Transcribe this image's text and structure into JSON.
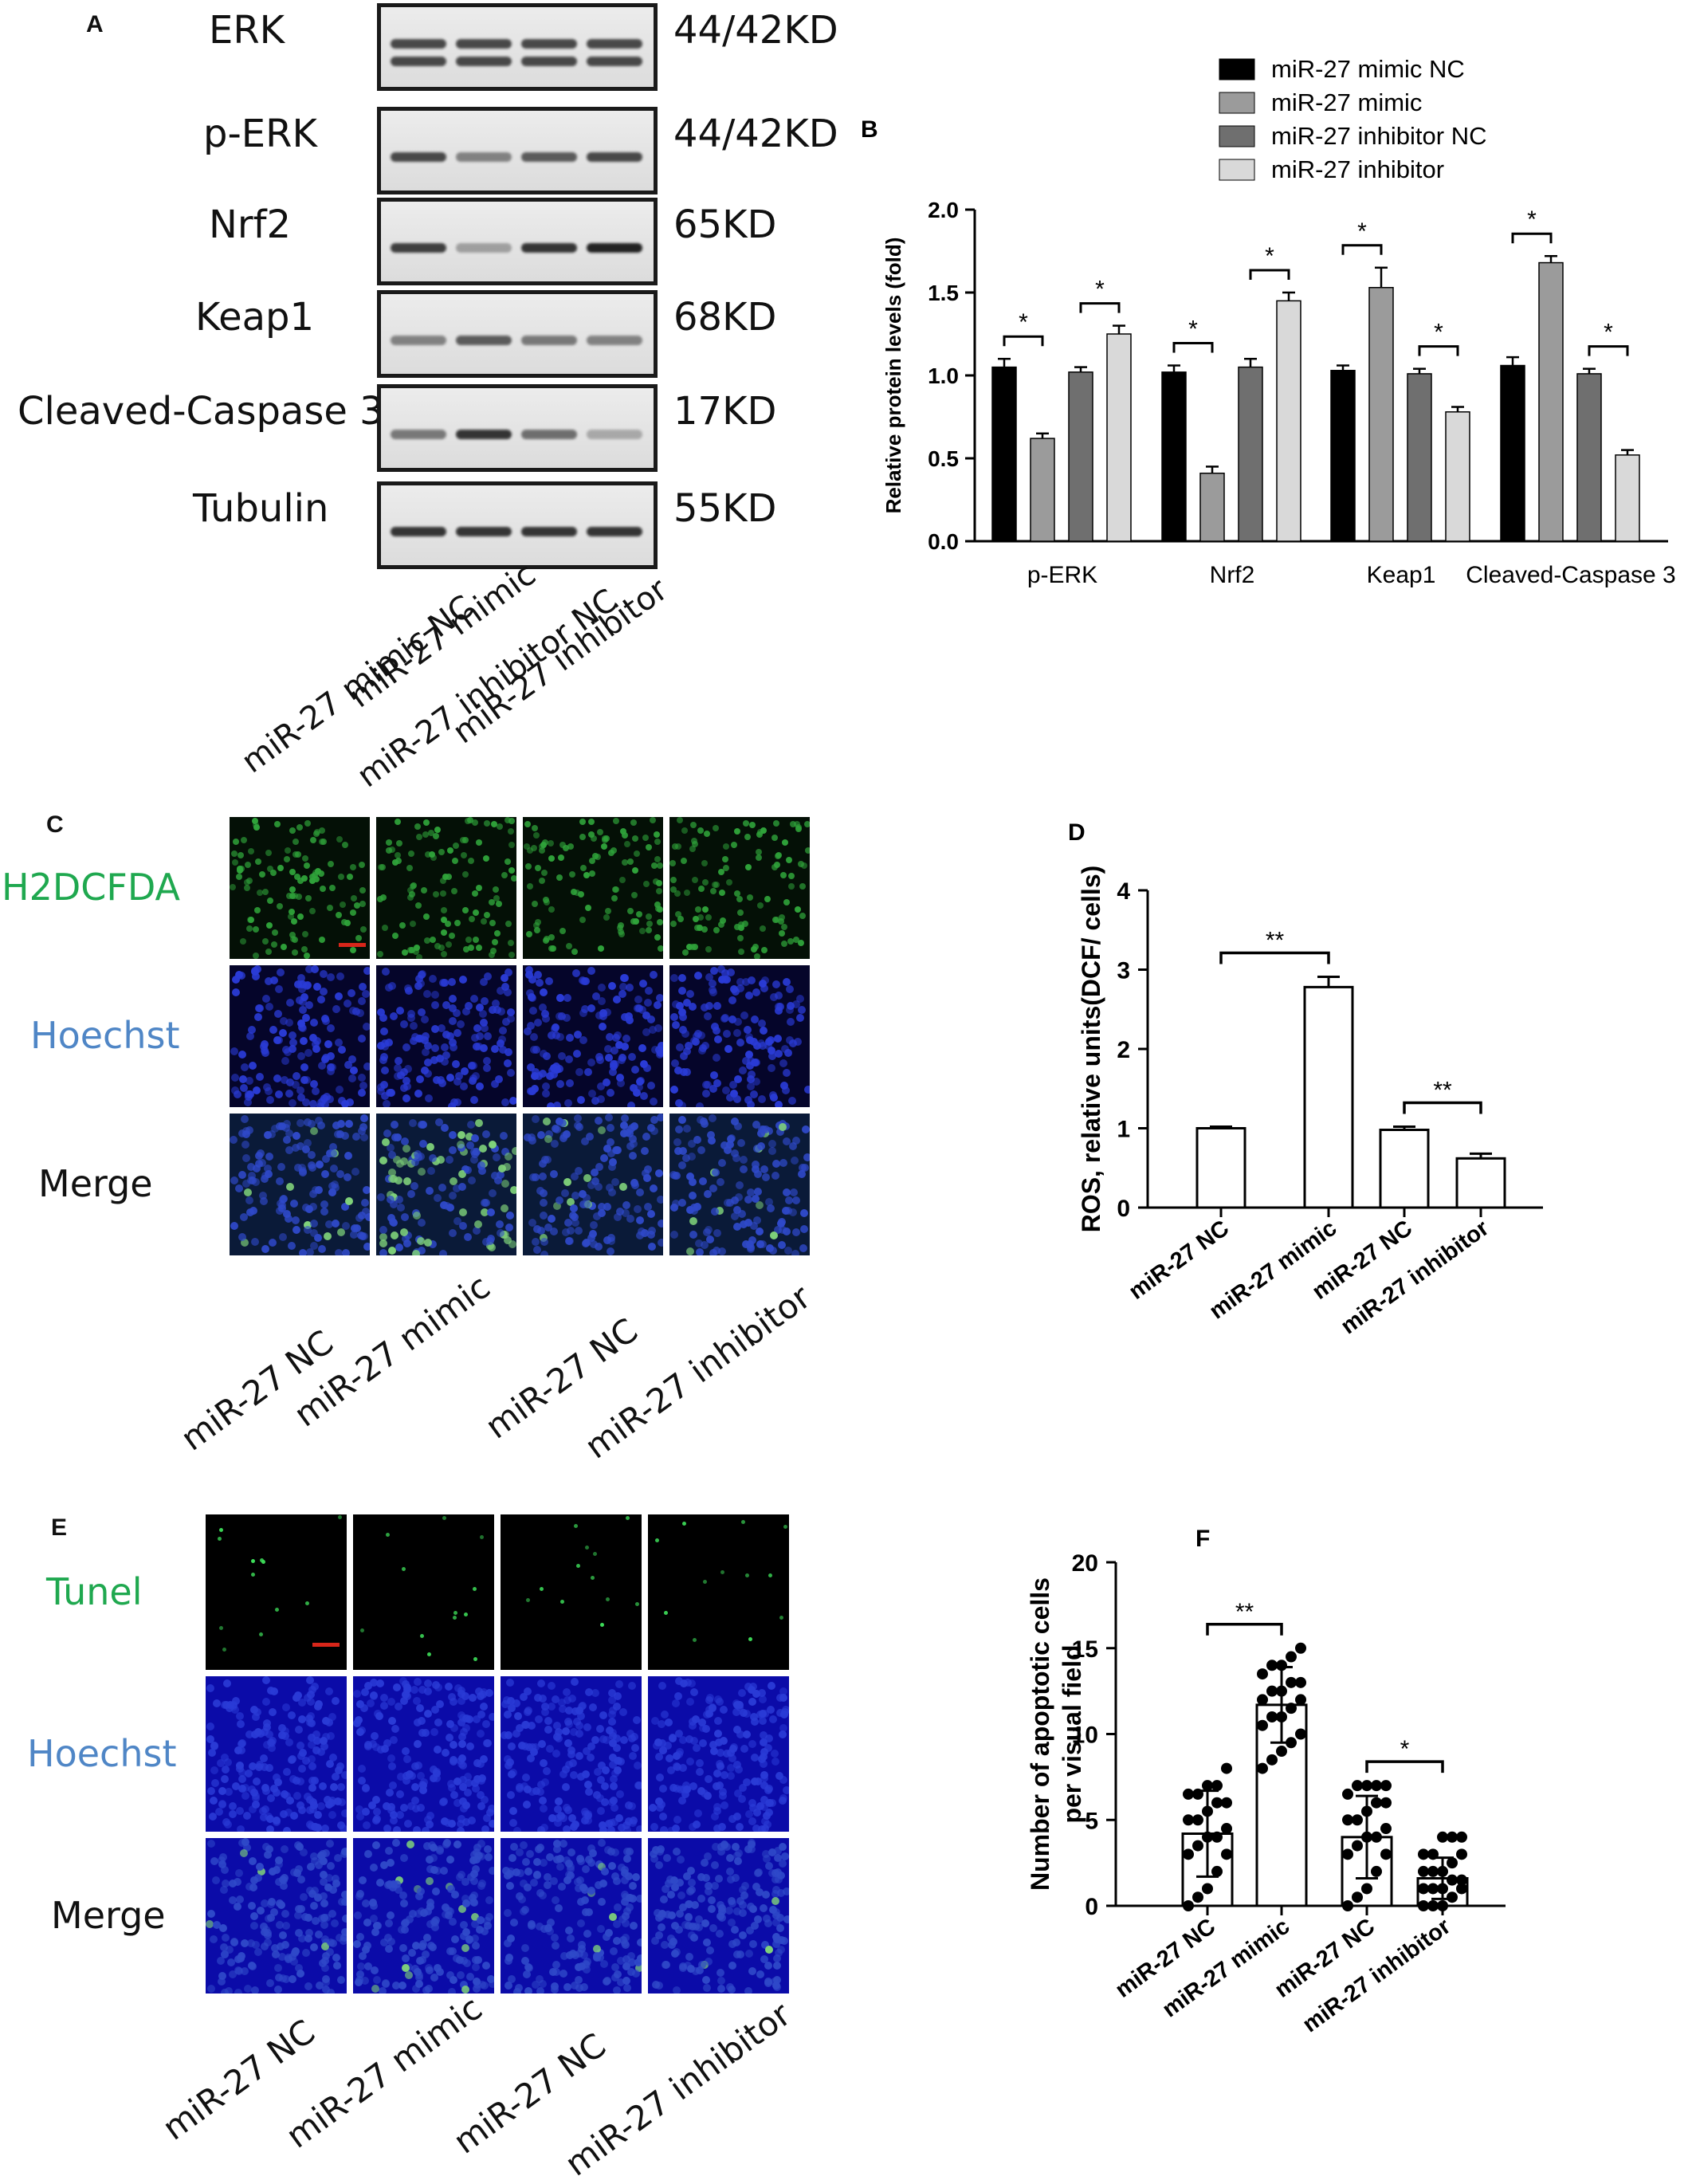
{
  "panel_a": {
    "label": "A",
    "rows": [
      {
        "name": "ERK",
        "size": "44/42KD",
        "bands": [
          0.8,
          0.8,
          0.8,
          0.8
        ]
      },
      {
        "name": "p-ERK",
        "size": "44/42KD",
        "bands": [
          0.8,
          0.5,
          0.7,
          0.8
        ]
      },
      {
        "name": "Nrf2",
        "size": "65KD",
        "bands": [
          0.85,
          0.35,
          0.9,
          1.0
        ]
      },
      {
        "name": "Keap1",
        "size": "68KD",
        "bands": [
          0.5,
          0.7,
          0.55,
          0.5
        ]
      },
      {
        "name": "Cleaved-Caspase 3",
        "size": "17KD",
        "bands": [
          0.55,
          0.9,
          0.6,
          0.3
        ]
      },
      {
        "name": "Tubulin",
        "size": "55KD",
        "bands": [
          0.9,
          0.9,
          0.9,
          0.9
        ]
      }
    ],
    "lanes": [
      "miR-27 mimic NC",
      "miR-27 mimic",
      "miR-27 inhibitor NC",
      "miR-27 inhibitor"
    ]
  },
  "panel_c": {
    "label": "C",
    "rows": [
      {
        "name": "H2DCFDA",
        "color": "#1fa84f"
      },
      {
        "name": "Hoechst",
        "color": "#4f86c6"
      },
      {
        "name": "Merge",
        "color": "#111111"
      }
    ],
    "columns": [
      "miR-27 NC",
      "miR-27 mimic",
      "miR-27 NC",
      "miR-27 inhibitor"
    ]
  },
  "panel_e": {
    "label": "E",
    "rows": [
      {
        "name": "Tunel",
        "color": "#1fa84f"
      },
      {
        "name": "Hoechst",
        "color": "#4f86c6"
      },
      {
        "name": "Merge",
        "color": "#111111"
      }
    ],
    "columns": [
      "miR-27 NC",
      "miR-27 mimic",
      "miR-27 NC",
      "miR-27 inhibitor"
    ]
  },
  "chart_data": [
    {
      "panel": "B",
      "type": "bar",
      "categories": [
        "p-ERK",
        "Nrf2",
        "Keap1",
        "Cleaved-Caspase 3"
      ],
      "series": [
        {
          "name": "miR-27 mimic NC",
          "color": "#000000",
          "values": [
            1.05,
            1.02,
            1.03,
            1.06
          ],
          "errors": [
            0.05,
            0.04,
            0.03,
            0.05
          ]
        },
        {
          "name": "miR-27 mimic",
          "color": "#9b9b9b",
          "values": [
            0.62,
            0.41,
            1.53,
            1.68
          ],
          "errors": [
            0.03,
            0.04,
            0.12,
            0.04
          ]
        },
        {
          "name": "miR-27 inhibitor NC",
          "color": "#6f6f6f",
          "values": [
            1.02,
            1.05,
            1.01,
            1.01
          ],
          "errors": [
            0.03,
            0.05,
            0.03,
            0.03
          ]
        },
        {
          "name": "miR-27 inhibitor",
          "color": "#d9d9d9",
          "values": [
            1.25,
            1.45,
            0.78,
            0.52
          ],
          "errors": [
            0.05,
            0.05,
            0.03,
            0.03
          ]
        }
      ],
      "significance": [
        {
          "category": 0,
          "from": 0,
          "to": 1,
          "label": "*"
        },
        {
          "category": 0,
          "from": 2,
          "to": 3,
          "label": "*"
        },
        {
          "category": 1,
          "from": 0,
          "to": 1,
          "label": "*"
        },
        {
          "category": 1,
          "from": 2,
          "to": 3,
          "label": "*"
        },
        {
          "category": 2,
          "from": 0,
          "to": 1,
          "label": "*"
        },
        {
          "category": 2,
          "from": 2,
          "to": 3,
          "label": "*"
        },
        {
          "category": 3,
          "from": 0,
          "to": 1,
          "label": "*"
        },
        {
          "category": 3,
          "from": 2,
          "to": 3,
          "label": "*"
        }
      ],
      "ylabel": "Relative protein levels  (fold)",
      "ylim": [
        0,
        2.0
      ],
      "yticks": [
        "0.0",
        "0.5",
        "1.0",
        "1.5",
        "2.0"
      ],
      "legend": "top-right"
    },
    {
      "panel": "D",
      "type": "bar",
      "categories": [
        "miR-27 NC",
        "miR-27 mimic",
        "miR-27 NC",
        "miR-27 inhibitor"
      ],
      "values": [
        1.0,
        2.78,
        0.98,
        0.62
      ],
      "errors": [
        0.02,
        0.13,
        0.04,
        0.06
      ],
      "significance": [
        {
          "from": 0,
          "to": 1,
          "label": "**"
        },
        {
          "from": 2,
          "to": 3,
          "label": "**"
        }
      ],
      "ylabel": "ROS, relative units(DCF/ cells)",
      "ylim": [
        0,
        4
      ],
      "yticks": [
        "0",
        "1",
        "2",
        "3",
        "4"
      ]
    },
    {
      "panel": "F",
      "type": "bar",
      "categories": [
        "miR-27 NC",
        "miR-27 mimic",
        "miR-27 NC",
        "miR-27 inhibitor"
      ],
      "values": [
        4.2,
        11.7,
        4.0,
        1.6
      ],
      "errors": [
        2.5,
        2.2,
        2.4,
        1.2
      ],
      "points": [
        [
          0,
          0.5,
          1,
          2,
          3,
          3,
          3.5,
          4,
          4,
          4.5,
          5,
          5,
          5.5,
          6,
          6,
          6.5,
          6.5,
          7,
          7,
          8
        ],
        [
          8,
          8.5,
          9,
          9.5,
          10,
          10.5,
          11,
          11,
          11.5,
          12,
          12,
          12.5,
          12.5,
          13,
          13,
          13.5,
          14,
          14,
          14.5,
          15
        ],
        [
          0,
          0.5,
          1,
          2,
          3,
          3,
          3.5,
          4,
          4,
          4.5,
          5,
          5,
          5.5,
          6,
          6,
          6.5,
          7,
          7,
          7,
          7
        ],
        [
          0,
          0,
          0,
          0.5,
          1,
          1,
          1,
          1,
          1.5,
          1.5,
          2,
          2,
          2,
          2.5,
          3,
          3,
          3,
          4,
          4,
          4
        ]
      ],
      "significance": [
        {
          "from": 0,
          "to": 1,
          "label": "**"
        },
        {
          "from": 2,
          "to": 3,
          "label": "*"
        }
      ],
      "ylabel": "Number of apoptotic cells per visual field",
      "ylim": [
        0,
        20
      ],
      "yticks": [
        "0",
        "5",
        "10",
        "15",
        "20"
      ]
    }
  ]
}
